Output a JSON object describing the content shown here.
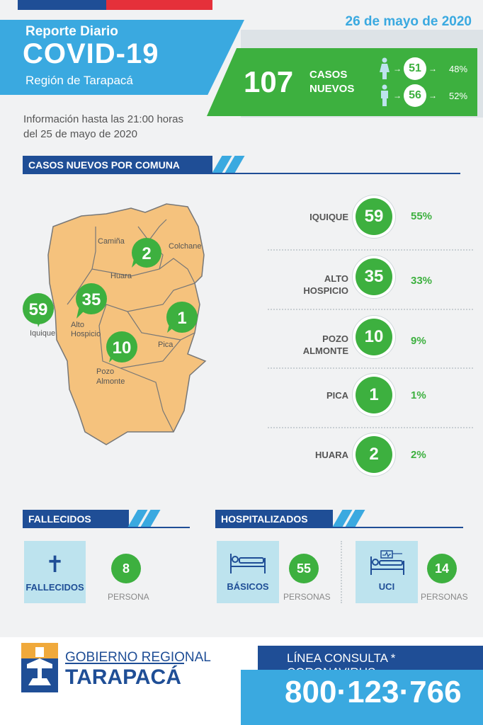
{
  "date": "26 de mayo de 2020",
  "header": {
    "line1": "Reporte Diario",
    "line2": "COVID-19",
    "line3": "Región de Tarapacá"
  },
  "new_cases": {
    "number": "107",
    "label_line1": "CASOS",
    "label_line2": "NUEVOS"
  },
  "gender": {
    "women": {
      "count": "51",
      "pct": "48%"
    },
    "men": {
      "count": "56",
      "pct": "52%"
    }
  },
  "info": {
    "line1": "Información hasta las 21:00 horas",
    "line2": "del 25 de mayo de 2020"
  },
  "section_comuna": "CASOS NUEVOS POR COMUNA",
  "map": {
    "labels": {
      "camina": "Camiña",
      "colchane": "Colchane",
      "huara": "Huara",
      "iquique": "Iquique",
      "alto_hospicio_1": "Alto",
      "alto_hospicio_2": "Hospicio",
      "pica": "Pica",
      "pozo_1": "Pozo",
      "pozo_2": "Almonte"
    },
    "markers": {
      "huara": "2",
      "iquique": "59",
      "alto_hospicio": "35",
      "pica": "1",
      "pozo_almonte": "10"
    }
  },
  "comunas": [
    {
      "name_line1": "IQUIQUE",
      "name_line2": "",
      "cases": "59",
      "pct": "55%"
    },
    {
      "name_line1": "ALTO",
      "name_line2": "HOSPICIO",
      "cases": "35",
      "pct": "33%"
    },
    {
      "name_line1": "POZO",
      "name_line2": "ALMONTE",
      "cases": "10",
      "pct": "9%"
    },
    {
      "name_line1": "PICA",
      "name_line2": "",
      "cases": "1",
      "pct": "1%"
    },
    {
      "name_line1": "HUARA",
      "name_line2": "",
      "cases": "2",
      "pct": "2%"
    }
  ],
  "fallecidos": {
    "section": "FALLECIDOS",
    "card_label": "FALLECIDOS",
    "count": "8",
    "unit": "PERSONA"
  },
  "hospitalizados": {
    "section": "HOSPITALIZADOS",
    "basicos_label": "BÁSICOS",
    "basicos_count": "55",
    "basicos_unit": "PERSONAS",
    "uci_label": "UCI",
    "uci_count": "14",
    "uci_unit": "PERSONAS"
  },
  "footer": {
    "gov_line1": "GOBIERNO REGIONAL",
    "gov_line2": "TARAPACÁ",
    "hotline_label": "LÍNEA CONSULTA * CORONAVIRUS",
    "hotline_number": "800·123·766"
  },
  "colors": {
    "green": "#3db03f",
    "light_blue": "#3aa9e0",
    "dark_blue": "#1f4e96",
    "red": "#e5303a",
    "map_fill": "#f5c27d"
  }
}
